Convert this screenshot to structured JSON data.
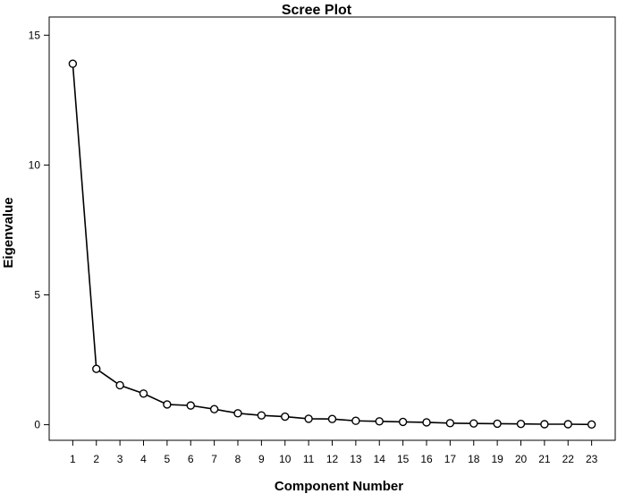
{
  "chart_data": {
    "type": "line",
    "title": "Scree Plot",
    "xlabel": "Component Number",
    "ylabel": "Eigenvalue",
    "x": [
      1,
      2,
      3,
      4,
      5,
      6,
      7,
      8,
      9,
      10,
      11,
      12,
      13,
      14,
      15,
      16,
      17,
      18,
      19,
      20,
      21,
      22,
      23
    ],
    "y": [
      13.9,
      2.15,
      1.52,
      1.2,
      0.78,
      0.74,
      0.6,
      0.44,
      0.36,
      0.31,
      0.23,
      0.22,
      0.15,
      0.13,
      0.11,
      0.09,
      0.06,
      0.05,
      0.04,
      0.03,
      0.02,
      0.02,
      0.01
    ],
    "xticks": [
      "1",
      "2",
      "3",
      "4",
      "5",
      "6",
      "7",
      "8",
      "9",
      "10",
      "11",
      "12",
      "13",
      "14",
      "15",
      "16",
      "17",
      "18",
      "19",
      "20",
      "21",
      "22",
      "23"
    ],
    "yticks": [
      "0",
      "5",
      "10",
      "15"
    ],
    "ytick_values": [
      0,
      5,
      10,
      15
    ],
    "xlim": [
      0,
      24
    ],
    "ylim": [
      -0.6,
      15.7
    ],
    "grid": false,
    "legend": "none",
    "markers": "open-circle",
    "colors": {
      "line": "#000000",
      "marker_fill": "#ffffff",
      "axis": "#000000",
      "background": "#ffffff"
    }
  }
}
